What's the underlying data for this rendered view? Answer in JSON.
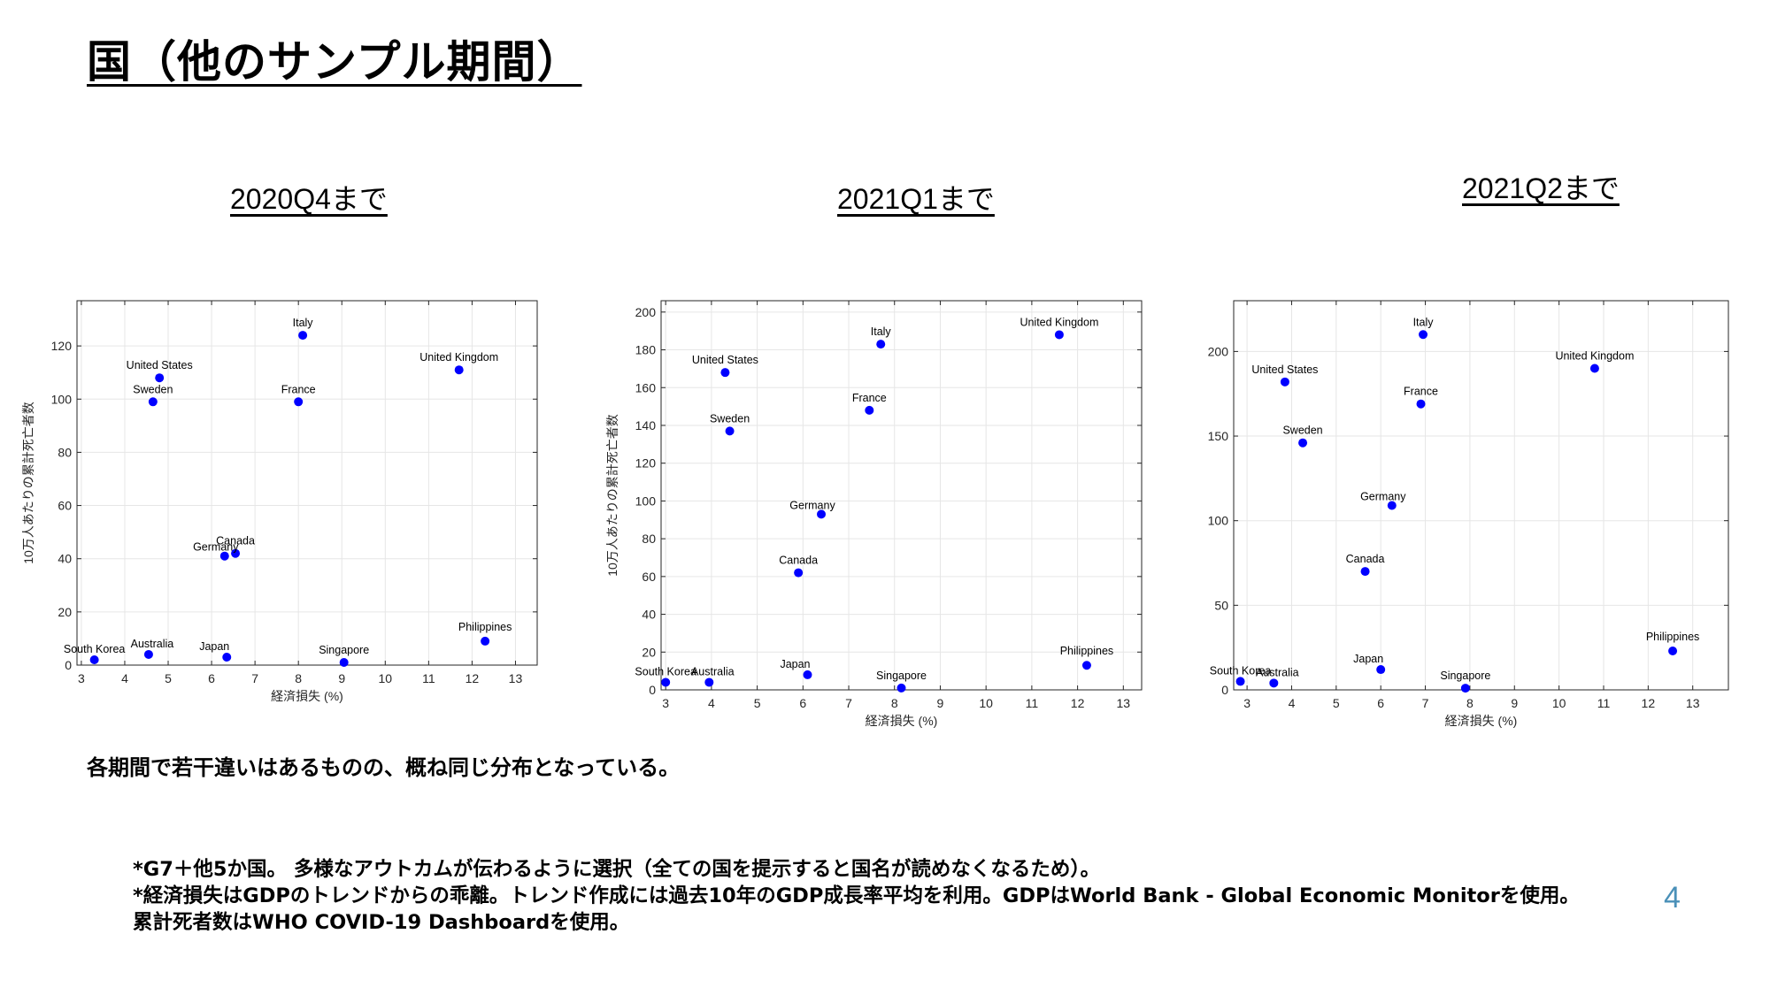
{
  "title": "国（他のサンプル期間）",
  "summary": "各期間で若干違いはあるものの、概ね同じ分布となっている。",
  "notes": [
    "*G7＋他5か国。 多様なアウトカムが伝わるように選択（全ての国を提示すると国名が読めなくなるため）。",
    "*経済損失はGDPのトレンドからの乖離。トレンド作成には過去10年のGDP成長率平均を利用。GDPはWorld Bank - Global Economic Monitorを使用。",
    "累計死者数はWHO COVID-19 Dashboardを使用。"
  ],
  "page_number": "4",
  "colors": {
    "point": "#0000ff",
    "grid": "#e6e6e6",
    "page_number": "#4a90b8"
  },
  "chart_data": [
    {
      "type": "scatter",
      "period_label": "2020Q4まで",
      "xlabel": "経済損失 (%)",
      "ylabel": "10万人あたりの累計死亡者数",
      "xlim": [
        2.9,
        13.5
      ],
      "ylim": [
        0,
        137
      ],
      "xticks": [
        3,
        4,
        5,
        6,
        7,
        8,
        9,
        10,
        11,
        12,
        13
      ],
      "yticks": [
        0,
        20,
        40,
        60,
        80,
        100,
        120
      ],
      "grid": true,
      "points": [
        {
          "name": "Italy",
          "x": 8.1,
          "y": 124
        },
        {
          "name": "United Kingdom",
          "x": 11.7,
          "y": 111
        },
        {
          "name": "United States",
          "x": 4.8,
          "y": 108
        },
        {
          "name": "Sweden",
          "x": 4.65,
          "y": 99
        },
        {
          "name": "France",
          "x": 8.0,
          "y": 99
        },
        {
          "name": "Canada",
          "x": 6.55,
          "y": 42
        },
        {
          "name": "Germany",
          "x": 6.3,
          "y": 41
        },
        {
          "name": "Philippines",
          "x": 12.3,
          "y": 9
        },
        {
          "name": "South Korea",
          "x": 3.3,
          "y": 2
        },
        {
          "name": "Australia",
          "x": 4.55,
          "y": 4
        },
        {
          "name": "Japan",
          "x": 6.35,
          "y": 3
        },
        {
          "name": "Singapore",
          "x": 9.05,
          "y": 1
        }
      ]
    },
    {
      "type": "scatter",
      "period_label": "2021Q1まで",
      "xlabel": "経済損失 (%)",
      "ylabel": "10万人あたりの累計死亡者数",
      "xlim": [
        2.9,
        13.4
      ],
      "ylim": [
        0,
        206
      ],
      "xticks": [
        3,
        4,
        5,
        6,
        7,
        8,
        9,
        10,
        11,
        12,
        13
      ],
      "yticks": [
        0,
        20,
        40,
        60,
        80,
        100,
        120,
        140,
        160,
        180,
        200
      ],
      "grid": true,
      "points": [
        {
          "name": "United Kingdom",
          "x": 11.6,
          "y": 188
        },
        {
          "name": "Italy",
          "x": 7.7,
          "y": 183
        },
        {
          "name": "United States",
          "x": 4.3,
          "y": 168
        },
        {
          "name": "France",
          "x": 7.45,
          "y": 148
        },
        {
          "name": "Sweden",
          "x": 4.4,
          "y": 137
        },
        {
          "name": "Germany",
          "x": 6.4,
          "y": 93
        },
        {
          "name": "Canada",
          "x": 5.9,
          "y": 62
        },
        {
          "name": "Philippines",
          "x": 12.2,
          "y": 13
        },
        {
          "name": "Japan",
          "x": 6.1,
          "y": 8
        },
        {
          "name": "South Korea",
          "x": 3.0,
          "y": 4
        },
        {
          "name": "Australia",
          "x": 3.95,
          "y": 4
        },
        {
          "name": "Singapore",
          "x": 8.15,
          "y": 1
        }
      ]
    },
    {
      "type": "scatter",
      "period_label": "2021Q2まで",
      "xlabel": "経済損失 (%)",
      "ylabel": "",
      "xlim": [
        2.7,
        13.8
      ],
      "ylim": [
        0,
        230
      ],
      "xticks": [
        3,
        4,
        5,
        6,
        7,
        8,
        9,
        10,
        11,
        12,
        13
      ],
      "yticks": [
        0,
        50,
        100,
        150,
        200
      ],
      "grid": true,
      "points": [
        {
          "name": "Italy",
          "x": 6.95,
          "y": 210
        },
        {
          "name": "United Kingdom",
          "x": 10.8,
          "y": 190
        },
        {
          "name": "United States",
          "x": 3.85,
          "y": 182
        },
        {
          "name": "France",
          "x": 6.9,
          "y": 169
        },
        {
          "name": "Sweden",
          "x": 4.25,
          "y": 146
        },
        {
          "name": "Germany",
          "x": 6.25,
          "y": 109
        },
        {
          "name": "Canada",
          "x": 5.65,
          "y": 70
        },
        {
          "name": "Philippines",
          "x": 12.55,
          "y": 23
        },
        {
          "name": "Japan",
          "x": 6.0,
          "y": 12
        },
        {
          "name": "South Korea",
          "x": 2.85,
          "y": 5
        },
        {
          "name": "Australia",
          "x": 3.6,
          "y": 4
        },
        {
          "name": "Singapore",
          "x": 7.9,
          "y": 1
        }
      ]
    }
  ]
}
